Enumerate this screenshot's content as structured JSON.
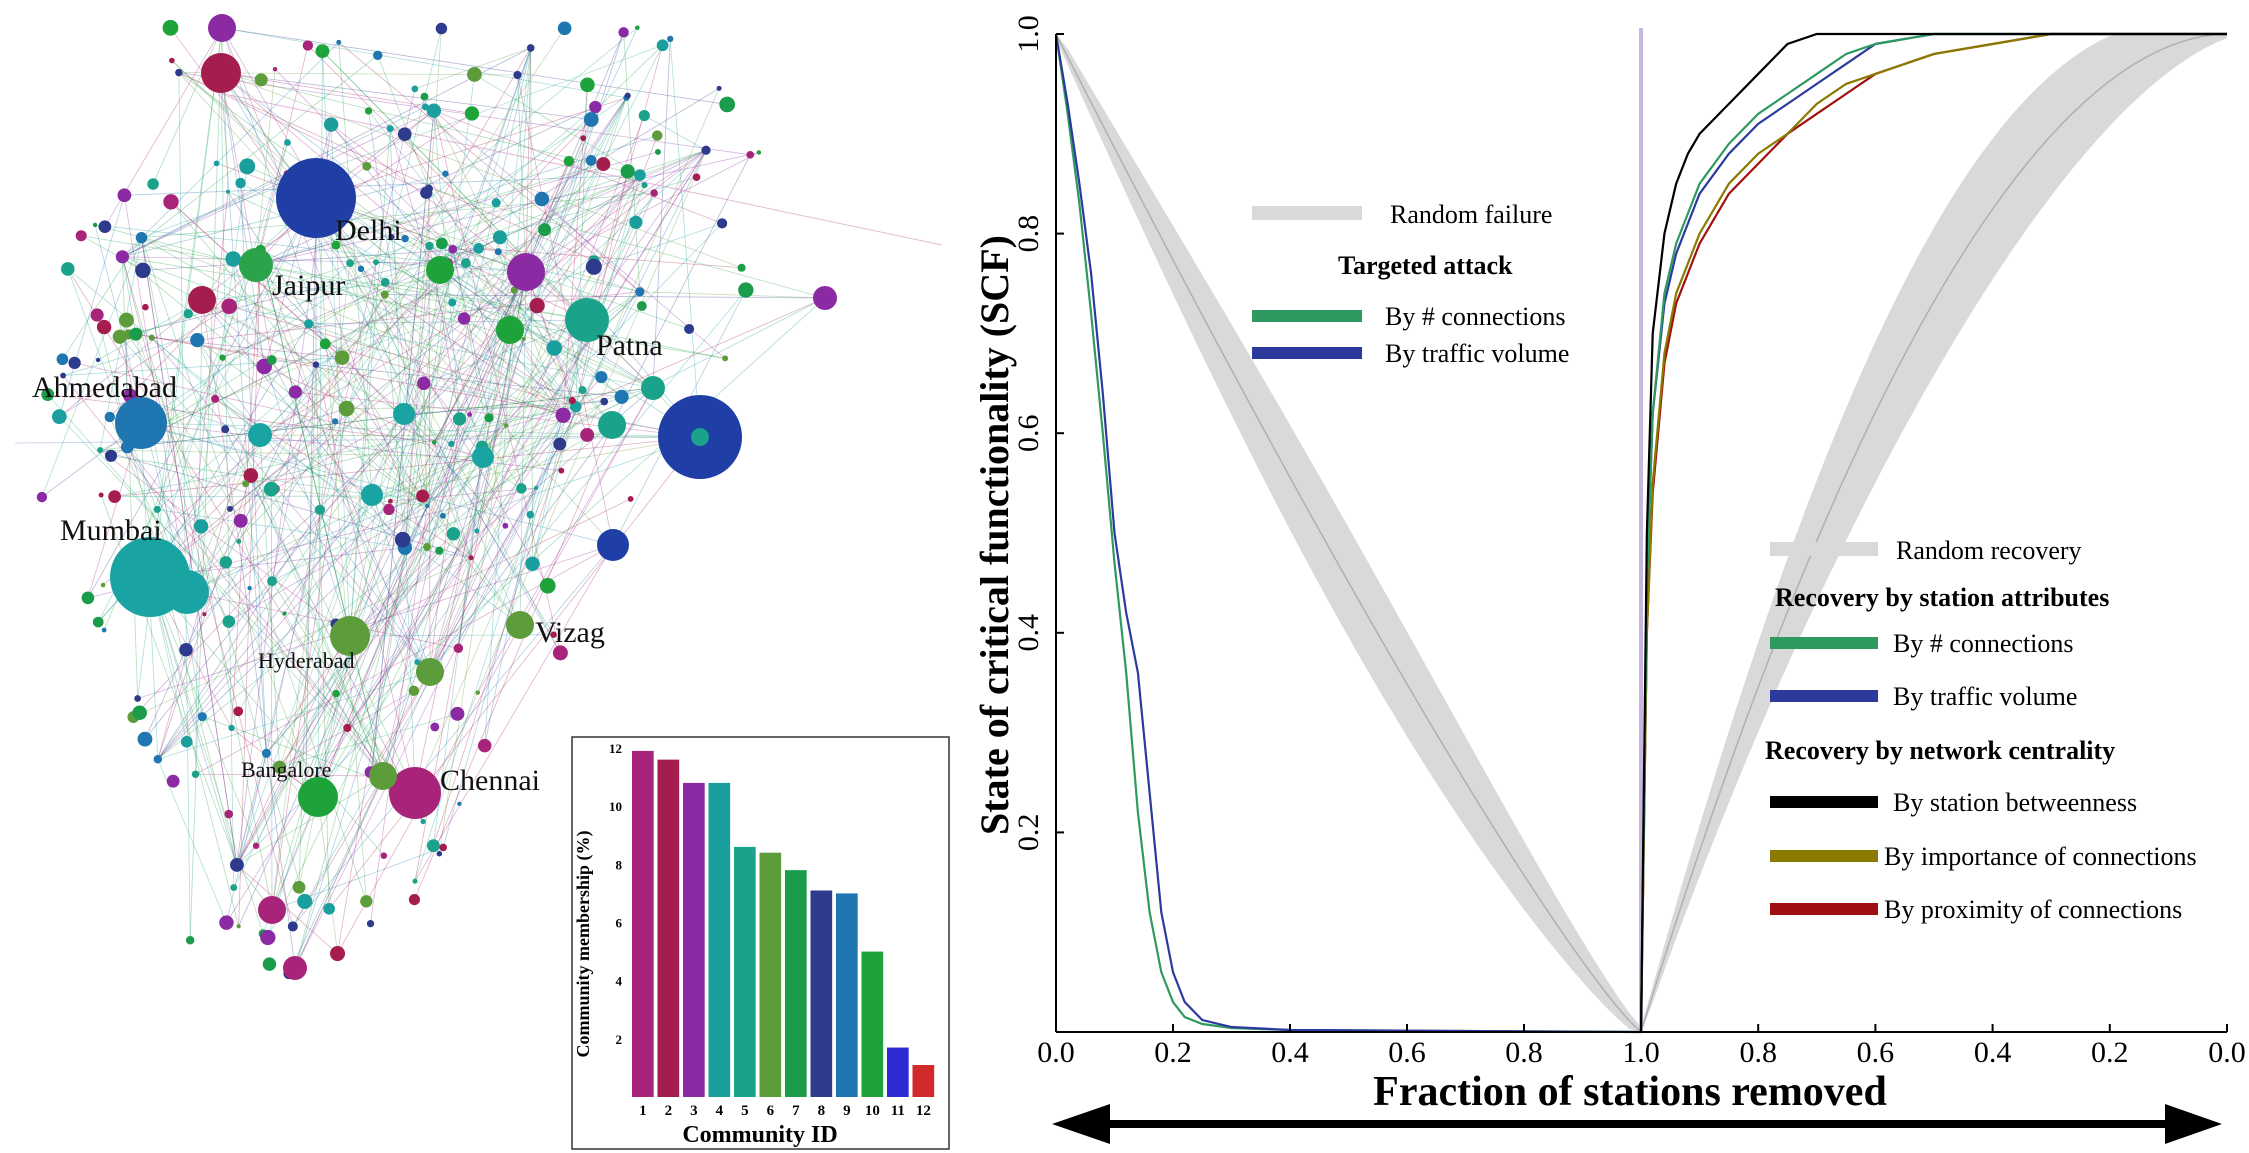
{
  "network": {
    "city_labels": [
      "Delhi",
      "Jaipur",
      "Patna",
      "Ahmedabad",
      "Mumbai",
      "Vizag",
      "Hyderabad",
      "Bangalore",
      "Chennai"
    ]
  },
  "chart_data": [
    {
      "type": "bar",
      "title": "",
      "xlabel": "Community ID",
      "ylabel": "Community membership (%)",
      "categories": [
        "1",
        "2",
        "3",
        "4",
        "5",
        "6",
        "7",
        "8",
        "9",
        "10",
        "11",
        "12"
      ],
      "values": [
        11.9,
        11.6,
        10.8,
        10.8,
        8.6,
        8.4,
        7.8,
        7.1,
        7.0,
        5.0,
        1.7,
        1.1
      ],
      "colors": [
        "#a8237a",
        "#a51d4e",
        "#8b2aa3",
        "#1a9e9e",
        "#1aa38a",
        "#5c9c3a",
        "#1a9c4a",
        "#2e3a8c",
        "#1f76b0",
        "#1da33a",
        "#2e2ad6",
        "#d12a2a"
      ],
      "yticks": [
        "2",
        "4",
        "6",
        "8",
        "10",
        "12"
      ],
      "ylim": [
        0,
        12
      ]
    },
    {
      "type": "line",
      "xlabel": "Fraction of stations removed",
      "ylabel": "State of critical functionality (SCF)",
      "xticks_left": [
        "0.0",
        "0.2",
        "0.4",
        "0.6",
        "0.8",
        "1.0"
      ],
      "xticks_right": [
        "0.8",
        "0.6",
        "0.4",
        "0.2",
        "0.0"
      ],
      "yticks": [
        "0.2",
        "0.4",
        "0.6",
        "0.8",
        "1.0"
      ],
      "ylim": [
        0,
        1
      ],
      "legend_failure": {
        "random": "Random failure",
        "targeted_header": "Targeted attack",
        "by_connections": "By # connections",
        "by_traffic": "By traffic volume"
      },
      "legend_recovery": {
        "random": "Random recovery",
        "attr_header": "Recovery by station attributes",
        "by_connections": "By # connections",
        "by_traffic": "By traffic volume",
        "centrality_header": "Recovery by network centrality",
        "by_betweenness": "By station betweenness",
        "by_importance": "By importance of connections",
        "by_proximity": "By proximity of connections"
      },
      "series_colors": {
        "random": "#d9d9d9",
        "connections": "#2e9960",
        "traffic": "#2b3a9c",
        "betweenness": "#000000",
        "importance": "#8a7a00",
        "proximity": "#a01010"
      },
      "failure_x": [
        0,
        0.02,
        0.04,
        0.06,
        0.08,
        0.1,
        0.12,
        0.14,
        0.16,
        0.18,
        0.2,
        0.22,
        0.25,
        0.3,
        0.4,
        1.0
      ],
      "failure_connections": [
        1,
        0.92,
        0.83,
        0.72,
        0.6,
        0.47,
        0.36,
        0.22,
        0.12,
        0.06,
        0.03,
        0.015,
        0.008,
        0.004,
        0.002,
        0
      ],
      "failure_traffic": [
        1,
        0.93,
        0.85,
        0.76,
        0.64,
        0.5,
        0.42,
        0.36,
        0.24,
        0.12,
        0.06,
        0.03,
        0.012,
        0.005,
        0.002,
        0
      ],
      "recovery_x": [
        0,
        0.01,
        0.02,
        0.04,
        0.06,
        0.08,
        0.1,
        0.15,
        0.2,
        0.25,
        0.3,
        0.35,
        0.4,
        0.5,
        0.6,
        0.7,
        0.8,
        0.9,
        1.0
      ],
      "recovery_betweenness": [
        0,
        0.5,
        0.7,
        0.8,
        0.85,
        0.88,
        0.9,
        0.93,
        0.96,
        0.99,
        1,
        1,
        1,
        1,
        1,
        1,
        1,
        1,
        1
      ],
      "recovery_connections": [
        0,
        0.45,
        0.62,
        0.74,
        0.79,
        0.82,
        0.85,
        0.89,
        0.92,
        0.94,
        0.96,
        0.98,
        0.99,
        1,
        1,
        1,
        1,
        1,
        1
      ],
      "recovery_traffic": [
        0,
        0.45,
        0.62,
        0.73,
        0.78,
        0.81,
        0.84,
        0.88,
        0.91,
        0.93,
        0.95,
        0.97,
        0.99,
        1,
        1,
        1,
        1,
        1,
        1
      ],
      "recovery_importance": [
        0,
        0.4,
        0.55,
        0.68,
        0.74,
        0.77,
        0.8,
        0.85,
        0.88,
        0.9,
        0.93,
        0.95,
        0.96,
        0.98,
        0.99,
        1,
        1,
        1,
        1
      ],
      "recovery_proximity": [
        0,
        0.4,
        0.54,
        0.67,
        0.73,
        0.76,
        0.79,
        0.84,
        0.87,
        0.9,
        0.92,
        0.94,
        0.96,
        0.98,
        0.99,
        1,
        1,
        1,
        1
      ],
      "random_failure_mean": [
        1,
        0.5,
        0
      ],
      "random_recovery_mean": [
        0,
        0.65,
        1
      ]
    }
  ]
}
